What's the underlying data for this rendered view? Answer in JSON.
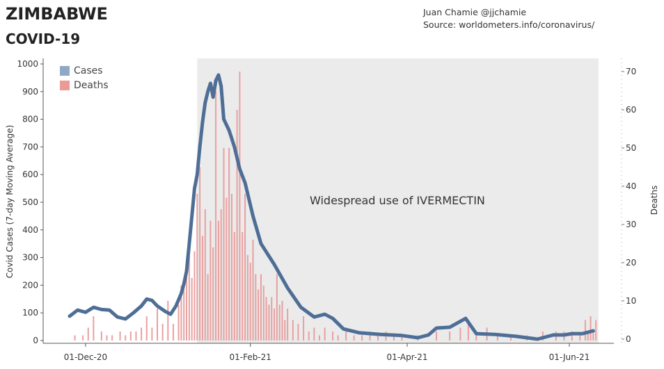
{
  "header": {
    "title": "ZIMBABWE",
    "subtitle": "COVID-19",
    "author": "Juan Chamie @jjchamie",
    "source": "Source: worldometers.info/coronavirus/"
  },
  "legend": {
    "cases_label": "Cases",
    "deaths_label": "Deaths"
  },
  "annotation": "Widespread use of IVERMECTIN",
  "colors": {
    "cases": "#4e6e96",
    "deaths": "#e8a0a0",
    "shade": "#ebebeb",
    "legend_cases": "#8fa9c4",
    "legend_deaths": "#ec9a96"
  },
  "chart_data": {
    "type": "line",
    "ylabel": "Covid Cases (7-day Moving Average)",
    "y2label": "Deaths",
    "ylim": [
      0,
      1000
    ],
    "y2lim": [
      0,
      70
    ],
    "yticks": [
      "0",
      "100",
      "200",
      "300",
      "400",
      "500",
      "600",
      "700",
      "800",
      "900",
      "1000"
    ],
    "y2ticks": [
      "0",
      "10",
      "20",
      "30",
      "40",
      "50",
      "60",
      "70"
    ],
    "xticks": [
      "01-Dec-20",
      "01-Feb-21",
      "01-Apr-21",
      "01-Jun-21"
    ],
    "x_start": "2020-11-25",
    "x_end": "2021-06-12",
    "shaded_region": {
      "from": "2021-01-12",
      "to": "2021-06-12",
      "label": "Widespread use of IVERMECTIN"
    },
    "series": [
      {
        "name": "Cases",
        "axis": "left",
        "points": [
          [
            "2020-11-25",
            88
          ],
          [
            "2020-11-28",
            110
          ],
          [
            "2020-12-01",
            102
          ],
          [
            "2020-12-04",
            120
          ],
          [
            "2020-12-07",
            112
          ],
          [
            "2020-12-10",
            110
          ],
          [
            "2020-12-13",
            85
          ],
          [
            "2020-12-16",
            78
          ],
          [
            "2020-12-19",
            100
          ],
          [
            "2020-12-22",
            125
          ],
          [
            "2020-12-24",
            150
          ],
          [
            "2020-12-26",
            145
          ],
          [
            "2020-12-28",
            125
          ],
          [
            "2020-12-31",
            105
          ],
          [
            "2021-01-02",
            95
          ],
          [
            "2021-01-04",
            125
          ],
          [
            "2021-01-06",
            170
          ],
          [
            "2021-01-07",
            205
          ],
          [
            "2021-01-08",
            250
          ],
          [
            "2021-01-09",
            350
          ],
          [
            "2021-01-10",
            450
          ],
          [
            "2021-01-11",
            550
          ],
          [
            "2021-01-12",
            600
          ],
          [
            "2021-01-13",
            700
          ],
          [
            "2021-01-14",
            790
          ],
          [
            "2021-01-15",
            860
          ],
          [
            "2021-01-16",
            900
          ],
          [
            "2021-01-17",
            930
          ],
          [
            "2021-01-18",
            880
          ],
          [
            "2021-01-19",
            940
          ],
          [
            "2021-01-20",
            960
          ],
          [
            "2021-01-21",
            920
          ],
          [
            "2021-01-22",
            800
          ],
          [
            "2021-01-24",
            760
          ],
          [
            "2021-01-26",
            700
          ],
          [
            "2021-01-28",
            620
          ],
          [
            "2021-01-30",
            570
          ],
          [
            "2021-02-02",
            450
          ],
          [
            "2021-02-05",
            350
          ],
          [
            "2021-02-10",
            275
          ],
          [
            "2021-02-15",
            190
          ],
          [
            "2021-02-20",
            120
          ],
          [
            "2021-02-25",
            85
          ],
          [
            "2021-03-01",
            95
          ],
          [
            "2021-03-04",
            80
          ],
          [
            "2021-03-08",
            42
          ],
          [
            "2021-03-14",
            28
          ],
          [
            "2021-03-22",
            22
          ],
          [
            "2021-03-30",
            18
          ],
          [
            "2021-04-05",
            10
          ],
          [
            "2021-04-09",
            20
          ],
          [
            "2021-04-12",
            45
          ],
          [
            "2021-04-17",
            48
          ],
          [
            "2021-04-23",
            80
          ],
          [
            "2021-04-27",
            25
          ],
          [
            "2021-05-04",
            22
          ],
          [
            "2021-05-12",
            15
          ],
          [
            "2021-05-20",
            5
          ],
          [
            "2021-05-26",
            20
          ],
          [
            "2021-05-30",
            20
          ],
          [
            "2021-06-02",
            25
          ],
          [
            "2021-06-06",
            25
          ],
          [
            "2021-06-10",
            35
          ]
        ]
      },
      {
        "name": "Deaths",
        "axis": "right",
        "type": "bar",
        "points": [
          [
            "2020-11-27",
            1
          ],
          [
            "2020-11-30",
            1
          ],
          [
            "2020-12-02",
            3
          ],
          [
            "2020-12-04",
            6
          ],
          [
            "2020-12-07",
            2
          ],
          [
            "2020-12-09",
            1
          ],
          [
            "2020-12-11",
            1
          ],
          [
            "2020-12-14",
            2
          ],
          [
            "2020-12-16",
            1
          ],
          [
            "2020-12-18",
            2
          ],
          [
            "2020-12-20",
            2
          ],
          [
            "2020-12-22",
            3
          ],
          [
            "2020-12-24",
            6
          ],
          [
            "2020-12-26",
            3
          ],
          [
            "2020-12-28",
            8
          ],
          [
            "2020-12-30",
            4
          ],
          [
            "2021-01-01",
            10
          ],
          [
            "2021-01-03",
            4
          ],
          [
            "2021-01-05",
            9
          ],
          [
            "2021-01-06",
            14
          ],
          [
            "2021-01-07",
            15
          ],
          [
            "2021-01-08",
            21
          ],
          [
            "2021-01-09",
            22
          ],
          [
            "2021-01-10",
            16
          ],
          [
            "2021-01-11",
            23
          ],
          [
            "2021-01-12",
            38
          ],
          [
            "2021-01-13",
            45
          ],
          [
            "2021-01-14",
            27
          ],
          [
            "2021-01-15",
            34
          ],
          [
            "2021-01-16",
            17
          ],
          [
            "2021-01-17",
            31
          ],
          [
            "2021-01-18",
            24
          ],
          [
            "2021-01-19",
            65
          ],
          [
            "2021-01-20",
            31
          ],
          [
            "2021-01-21",
            34
          ],
          [
            "2021-01-22",
            50
          ],
          [
            "2021-01-23",
            37
          ],
          [
            "2021-01-24",
            50
          ],
          [
            "2021-01-25",
            38
          ],
          [
            "2021-01-26",
            28
          ],
          [
            "2021-01-27",
            60
          ],
          [
            "2021-01-28",
            70
          ],
          [
            "2021-01-29",
            28
          ],
          [
            "2021-01-30",
            38
          ],
          [
            "2021-01-31",
            22
          ],
          [
            "2021-02-01",
            20
          ],
          [
            "2021-02-02",
            26
          ],
          [
            "2021-02-03",
            17
          ],
          [
            "2021-02-04",
            13
          ],
          [
            "2021-02-05",
            17
          ],
          [
            "2021-02-06",
            14
          ],
          [
            "2021-02-07",
            11
          ],
          [
            "2021-02-08",
            9
          ],
          [
            "2021-02-09",
            11
          ],
          [
            "2021-02-10",
            8
          ],
          [
            "2021-02-11",
            17
          ],
          [
            "2021-02-12",
            9
          ],
          [
            "2021-02-13",
            10
          ],
          [
            "2021-02-14",
            5
          ],
          [
            "2021-02-15",
            8
          ],
          [
            "2021-02-17",
            5
          ],
          [
            "2021-02-19",
            4
          ],
          [
            "2021-02-21",
            6
          ],
          [
            "2021-02-23",
            2
          ],
          [
            "2021-02-25",
            3
          ],
          [
            "2021-02-27",
            1
          ],
          [
            "2021-03-01",
            3
          ],
          [
            "2021-03-04",
            2
          ],
          [
            "2021-03-06",
            1
          ],
          [
            "2021-03-09",
            3
          ],
          [
            "2021-03-12",
            1
          ],
          [
            "2021-03-15",
            1
          ],
          [
            "2021-03-18",
            2
          ],
          [
            "2021-03-21",
            1
          ],
          [
            "2021-03-24",
            2
          ],
          [
            "2021-03-27",
            1
          ],
          [
            "2021-03-30",
            1
          ],
          [
            "2021-04-05",
            1
          ],
          [
            "2021-04-12",
            2
          ],
          [
            "2021-04-17",
            2
          ],
          [
            "2021-04-21",
            3
          ],
          [
            "2021-04-24",
            4
          ],
          [
            "2021-04-27",
            2
          ],
          [
            "2021-05-01",
            3
          ],
          [
            "2021-05-05",
            1
          ],
          [
            "2021-05-10",
            1
          ],
          [
            "2021-05-16",
            1
          ],
          [
            "2021-05-22",
            2
          ],
          [
            "2021-05-27",
            2
          ],
          [
            "2021-05-30",
            2
          ],
          [
            "2021-06-02",
            2
          ],
          [
            "2021-06-05",
            1
          ],
          [
            "2021-06-07",
            5
          ],
          [
            "2021-06-08",
            2
          ],
          [
            "2021-06-09",
            6
          ],
          [
            "2021-06-10",
            2
          ],
          [
            "2021-06-11",
            5
          ]
        ]
      }
    ]
  }
}
